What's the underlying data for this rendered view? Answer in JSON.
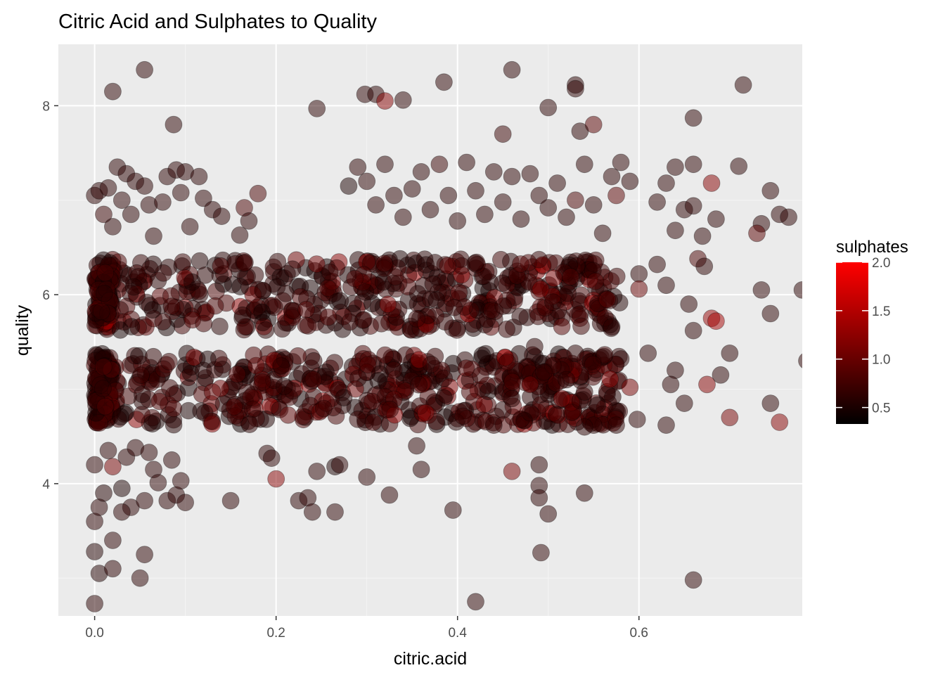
{
  "chart_data": {
    "type": "scatter",
    "title": "Citric Acid and Sulphates to Quality",
    "xlabel": "citric.acid",
    "ylabel": "quality",
    "xlim": [
      -0.04,
      0.78
    ],
    "ylim": [
      2.6,
      8.65
    ],
    "x_ticks": [
      {
        "value": 0.0,
        "label": "0.0"
      },
      {
        "value": 0.2,
        "label": "0.2"
      },
      {
        "value": 0.4,
        "label": "0.4"
      },
      {
        "value": 0.6,
        "label": "0.6"
      }
    ],
    "y_ticks": [
      {
        "value": 4,
        "label": "4"
      },
      {
        "value": 6,
        "label": "6"
      },
      {
        "value": 8,
        "label": "8"
      }
    ],
    "grid": true,
    "jitter": true,
    "color_scale": {
      "name": "sulphates",
      "low_color": "#000000",
      "high_color": "#ff0000",
      "limits": [
        0.33,
        2.0
      ],
      "breaks": [
        {
          "value": 0.5,
          "label": "0.5"
        },
        {
          "value": 1.0,
          "label": "1.0"
        },
        {
          "value": 1.5,
          "label": "1.5"
        },
        {
          "value": 2.0,
          "label": "2.0"
        }
      ]
    },
    "legend_position": "right",
    "point_alpha": 0.5,
    "points": [
      [
        0.0,
        2.73,
        0.6
      ],
      [
        0.005,
        3.05,
        0.55
      ],
      [
        0.0,
        3.28,
        0.55
      ],
      [
        0.02,
        3.1,
        0.6
      ],
      [
        0.02,
        3.4,
        0.6
      ],
      [
        0.05,
        3.0,
        0.6
      ],
      [
        0.055,
        3.25,
        0.6
      ],
      [
        0.0,
        3.6,
        0.6
      ],
      [
        0.005,
        3.75,
        0.6
      ],
      [
        0.01,
        3.9,
        0.55
      ],
      [
        0.0,
        4.2,
        0.6
      ],
      [
        0.015,
        4.35,
        0.6
      ],
      [
        0.02,
        4.18,
        1.1
      ],
      [
        0.03,
        3.95,
        0.5
      ],
      [
        0.035,
        4.28,
        0.6
      ],
      [
        0.04,
        3.75,
        0.6
      ],
      [
        0.045,
        4.38,
        0.6
      ],
      [
        0.055,
        3.82,
        0.6
      ],
      [
        0.06,
        4.33,
        0.6
      ],
      [
        0.065,
        4.15,
        0.6
      ],
      [
        0.07,
        4.01,
        0.6
      ],
      [
        0.08,
        3.82,
        0.6
      ],
      [
        0.085,
        4.25,
        0.6
      ],
      [
        0.09,
        3.88,
        0.6
      ],
      [
        0.095,
        4.03,
        0.6
      ],
      [
        0.1,
        3.8,
        0.6
      ],
      [
        0.03,
        3.7,
        0.6
      ],
      [
        0.02,
        8.15,
        0.6
      ],
      [
        0.055,
        8.38,
        0.6
      ],
      [
        0.087,
        7.8,
        0.6
      ],
      [
        0.0,
        7.05,
        0.6
      ],
      [
        0.005,
        7.1,
        0.6
      ],
      [
        0.01,
        6.85,
        0.7
      ],
      [
        0.015,
        7.13,
        0.6
      ],
      [
        0.02,
        6.72,
        0.6
      ],
      [
        0.025,
        7.35,
        0.6
      ],
      [
        0.03,
        7.0,
        0.6
      ],
      [
        0.035,
        7.28,
        0.6
      ],
      [
        0.04,
        6.85,
        0.6
      ],
      [
        0.045,
        7.2,
        0.6
      ],
      [
        0.055,
        7.15,
        0.6
      ],
      [
        0.06,
        6.95,
        0.6
      ],
      [
        0.065,
        6.62,
        0.6
      ],
      [
        0.075,
        6.98,
        0.6
      ],
      [
        0.08,
        7.25,
        0.6
      ],
      [
        0.09,
        7.32,
        0.6
      ],
      [
        0.095,
        7.08,
        0.6
      ],
      [
        0.1,
        7.3,
        0.6
      ],
      [
        0.105,
        6.72,
        0.6
      ],
      [
        0.115,
        7.25,
        0.6
      ],
      [
        0.12,
        7.02,
        0.6
      ],
      [
        0.13,
        6.9,
        0.6
      ],
      [
        0.14,
        6.83,
        0.6
      ],
      [
        0.16,
        6.63,
        0.6
      ],
      [
        0.165,
        6.92,
        0.8
      ],
      [
        0.17,
        6.78,
        0.6
      ],
      [
        0.18,
        7.07,
        0.8
      ],
      [
        0.15,
        3.82,
        0.6
      ],
      [
        0.19,
        4.32,
        0.6
      ],
      [
        0.195,
        4.27,
        0.6
      ],
      [
        0.2,
        4.05,
        1.2
      ],
      [
        0.225,
        3.82,
        0.6
      ],
      [
        0.235,
        3.85,
        0.6
      ],
      [
        0.24,
        3.7,
        0.6
      ],
      [
        0.245,
        4.13,
        0.6
      ],
      [
        0.265,
        4.18,
        0.5
      ],
      [
        0.27,
        4.2,
        0.6
      ],
      [
        0.265,
        3.7,
        0.6
      ],
      [
        0.3,
        4.07,
        0.6
      ],
      [
        0.325,
        3.88,
        0.6
      ],
      [
        0.245,
        7.97,
        0.6
      ],
      [
        0.298,
        8.12,
        0.6
      ],
      [
        0.31,
        8.12,
        0.6
      ],
      [
        0.32,
        8.05,
        1.2
      ],
      [
        0.34,
        8.06,
        0.6
      ],
      [
        0.385,
        8.25,
        0.6
      ],
      [
        0.46,
        8.38,
        0.6
      ],
      [
        0.53,
        8.22,
        0.6
      ],
      [
        0.53,
        8.18,
        0.6
      ],
      [
        0.715,
        8.22,
        0.6
      ],
      [
        0.5,
        7.98,
        0.6
      ],
      [
        0.66,
        7.87,
        0.6
      ],
      [
        0.55,
        7.8,
        0.9
      ],
      [
        0.535,
        7.73,
        0.6
      ],
      [
        0.45,
        7.7,
        0.7
      ],
      [
        0.28,
        7.15,
        0.5
      ],
      [
        0.29,
        7.35,
        0.6
      ],
      [
        0.3,
        7.2,
        0.6
      ],
      [
        0.31,
        6.95,
        0.6
      ],
      [
        0.32,
        7.38,
        0.6
      ],
      [
        0.33,
        7.05,
        0.6
      ],
      [
        0.34,
        6.82,
        0.6
      ],
      [
        0.35,
        7.12,
        0.6
      ],
      [
        0.36,
        7.3,
        0.6
      ],
      [
        0.37,
        6.9,
        0.6
      ],
      [
        0.38,
        7.38,
        0.7
      ],
      [
        0.39,
        7.05,
        0.6
      ],
      [
        0.4,
        6.78,
        0.6
      ],
      [
        0.41,
        7.4,
        0.6
      ],
      [
        0.42,
        7.1,
        0.6
      ],
      [
        0.43,
        6.85,
        0.6
      ],
      [
        0.44,
        7.3,
        0.6
      ],
      [
        0.45,
        6.98,
        0.6
      ],
      [
        0.46,
        7.25,
        0.6
      ],
      [
        0.47,
        6.8,
        0.6
      ],
      [
        0.48,
        7.28,
        0.6
      ],
      [
        0.49,
        7.05,
        0.6
      ],
      [
        0.5,
        6.92,
        0.6
      ],
      [
        0.51,
        7.18,
        0.6
      ],
      [
        0.52,
        6.82,
        0.6
      ],
      [
        0.53,
        7.0,
        0.8
      ],
      [
        0.54,
        7.38,
        0.6
      ],
      [
        0.55,
        6.95,
        0.6
      ],
      [
        0.56,
        6.65,
        0.6
      ],
      [
        0.57,
        7.25,
        0.6
      ],
      [
        0.575,
        7.05,
        0.9
      ],
      [
        0.58,
        7.4,
        0.6
      ],
      [
        0.59,
        7.2,
        0.6
      ],
      [
        0.62,
        6.98,
        0.6
      ],
      [
        0.63,
        7.18,
        0.6
      ],
      [
        0.64,
        7.35,
        0.6
      ],
      [
        0.65,
        6.9,
        0.6
      ],
      [
        0.66,
        7.38,
        0.6
      ],
      [
        0.67,
        6.62,
        0.6
      ],
      [
        0.68,
        7.18,
        1.2
      ],
      [
        0.685,
        6.8,
        0.6
      ],
      [
        0.71,
        7.36,
        0.6
      ],
      [
        0.735,
        6.75,
        0.6
      ],
      [
        0.745,
        7.1,
        0.6
      ],
      [
        0.755,
        6.85,
        0.6
      ],
      [
        0.765,
        6.82,
        0.6
      ],
      [
        0.73,
        6.65,
        0.9
      ],
      [
        0.64,
        6.68,
        0.6
      ],
      [
        0.66,
        6.94,
        0.6
      ],
      [
        0.7,
        5.38,
        0.6
      ],
      [
        0.735,
        6.05,
        0.6
      ],
      [
        0.745,
        5.8,
        0.6
      ],
      [
        0.78,
        6.05,
        0.6
      ],
      [
        0.785,
        5.3,
        0.6
      ],
      [
        0.745,
        4.85,
        0.6
      ],
      [
        0.7,
        4.7,
        1.1
      ],
      [
        0.755,
        4.65,
        1.2
      ],
      [
        0.69,
        5.15,
        0.6
      ],
      [
        0.68,
        5.75,
        1.3
      ],
      [
        0.685,
        5.72,
        1.4
      ],
      [
        0.675,
        5.05,
        1.2
      ],
      [
        0.66,
        5.62,
        0.6
      ],
      [
        0.655,
        5.9,
        0.6
      ],
      [
        0.665,
        6.38,
        0.8
      ],
      [
        0.672,
        6.3,
        0.6
      ],
      [
        0.64,
        5.2,
        0.6
      ],
      [
        0.65,
        4.85,
        0.6
      ],
      [
        0.63,
        4.62,
        0.6
      ],
      [
        0.62,
        6.32,
        0.6
      ],
      [
        0.63,
        6.1,
        0.6
      ],
      [
        0.635,
        5.05,
        0.6
      ],
      [
        0.61,
        5.38,
        0.6
      ],
      [
        0.6,
        6.22,
        0.6
      ],
      [
        0.6,
        6.06,
        1.0
      ],
      [
        0.598,
        4.68,
        0.6
      ],
      [
        0.59,
        5.02,
        1.1
      ],
      [
        0.58,
        5.32,
        0.6
      ],
      [
        0.575,
        4.62,
        0.6
      ],
      [
        0.57,
        5.66,
        0.6
      ],
      [
        0.565,
        5.95,
        0.9
      ],
      [
        0.55,
        4.62,
        0.6
      ],
      [
        0.54,
        4.6,
        0.6
      ],
      [
        0.54,
        4.97,
        0.6
      ],
      [
        0.53,
        5.38,
        0.6
      ],
      [
        0.52,
        5.1,
        0.6
      ],
      [
        0.515,
        4.9,
        1.1
      ],
      [
        0.505,
        5.25,
        0.7
      ],
      [
        0.495,
        5.18,
        0.6
      ],
      [
        0.485,
        5.45,
        0.6
      ],
      [
        0.48,
        5.05,
        1.0
      ],
      [
        0.49,
        4.2,
        0.6
      ],
      [
        0.49,
        3.98,
        0.6
      ],
      [
        0.49,
        3.85,
        0.6
      ],
      [
        0.5,
        3.68,
        0.6
      ],
      [
        0.492,
        3.27,
        0.6
      ],
      [
        0.54,
        3.9,
        0.6
      ],
      [
        0.46,
        4.13,
        1.1
      ],
      [
        0.395,
        3.72,
        0.6
      ],
      [
        0.42,
        2.75,
        0.6
      ],
      [
        0.66,
        2.98,
        0.6
      ],
      [
        0.355,
        4.4,
        0.6
      ],
      [
        0.36,
        4.15,
        0.6
      ],
      [
        0.365,
        4.75,
        1.1
      ],
      [
        0.44,
        4.62,
        0.6
      ],
      [
        0.45,
        4.78,
        0.6
      ],
      [
        0.46,
        4.9,
        0.6
      ],
      [
        0.47,
        4.68,
        0.6
      ],
      [
        0.48,
        4.75,
        0.6
      ]
    ]
  }
}
